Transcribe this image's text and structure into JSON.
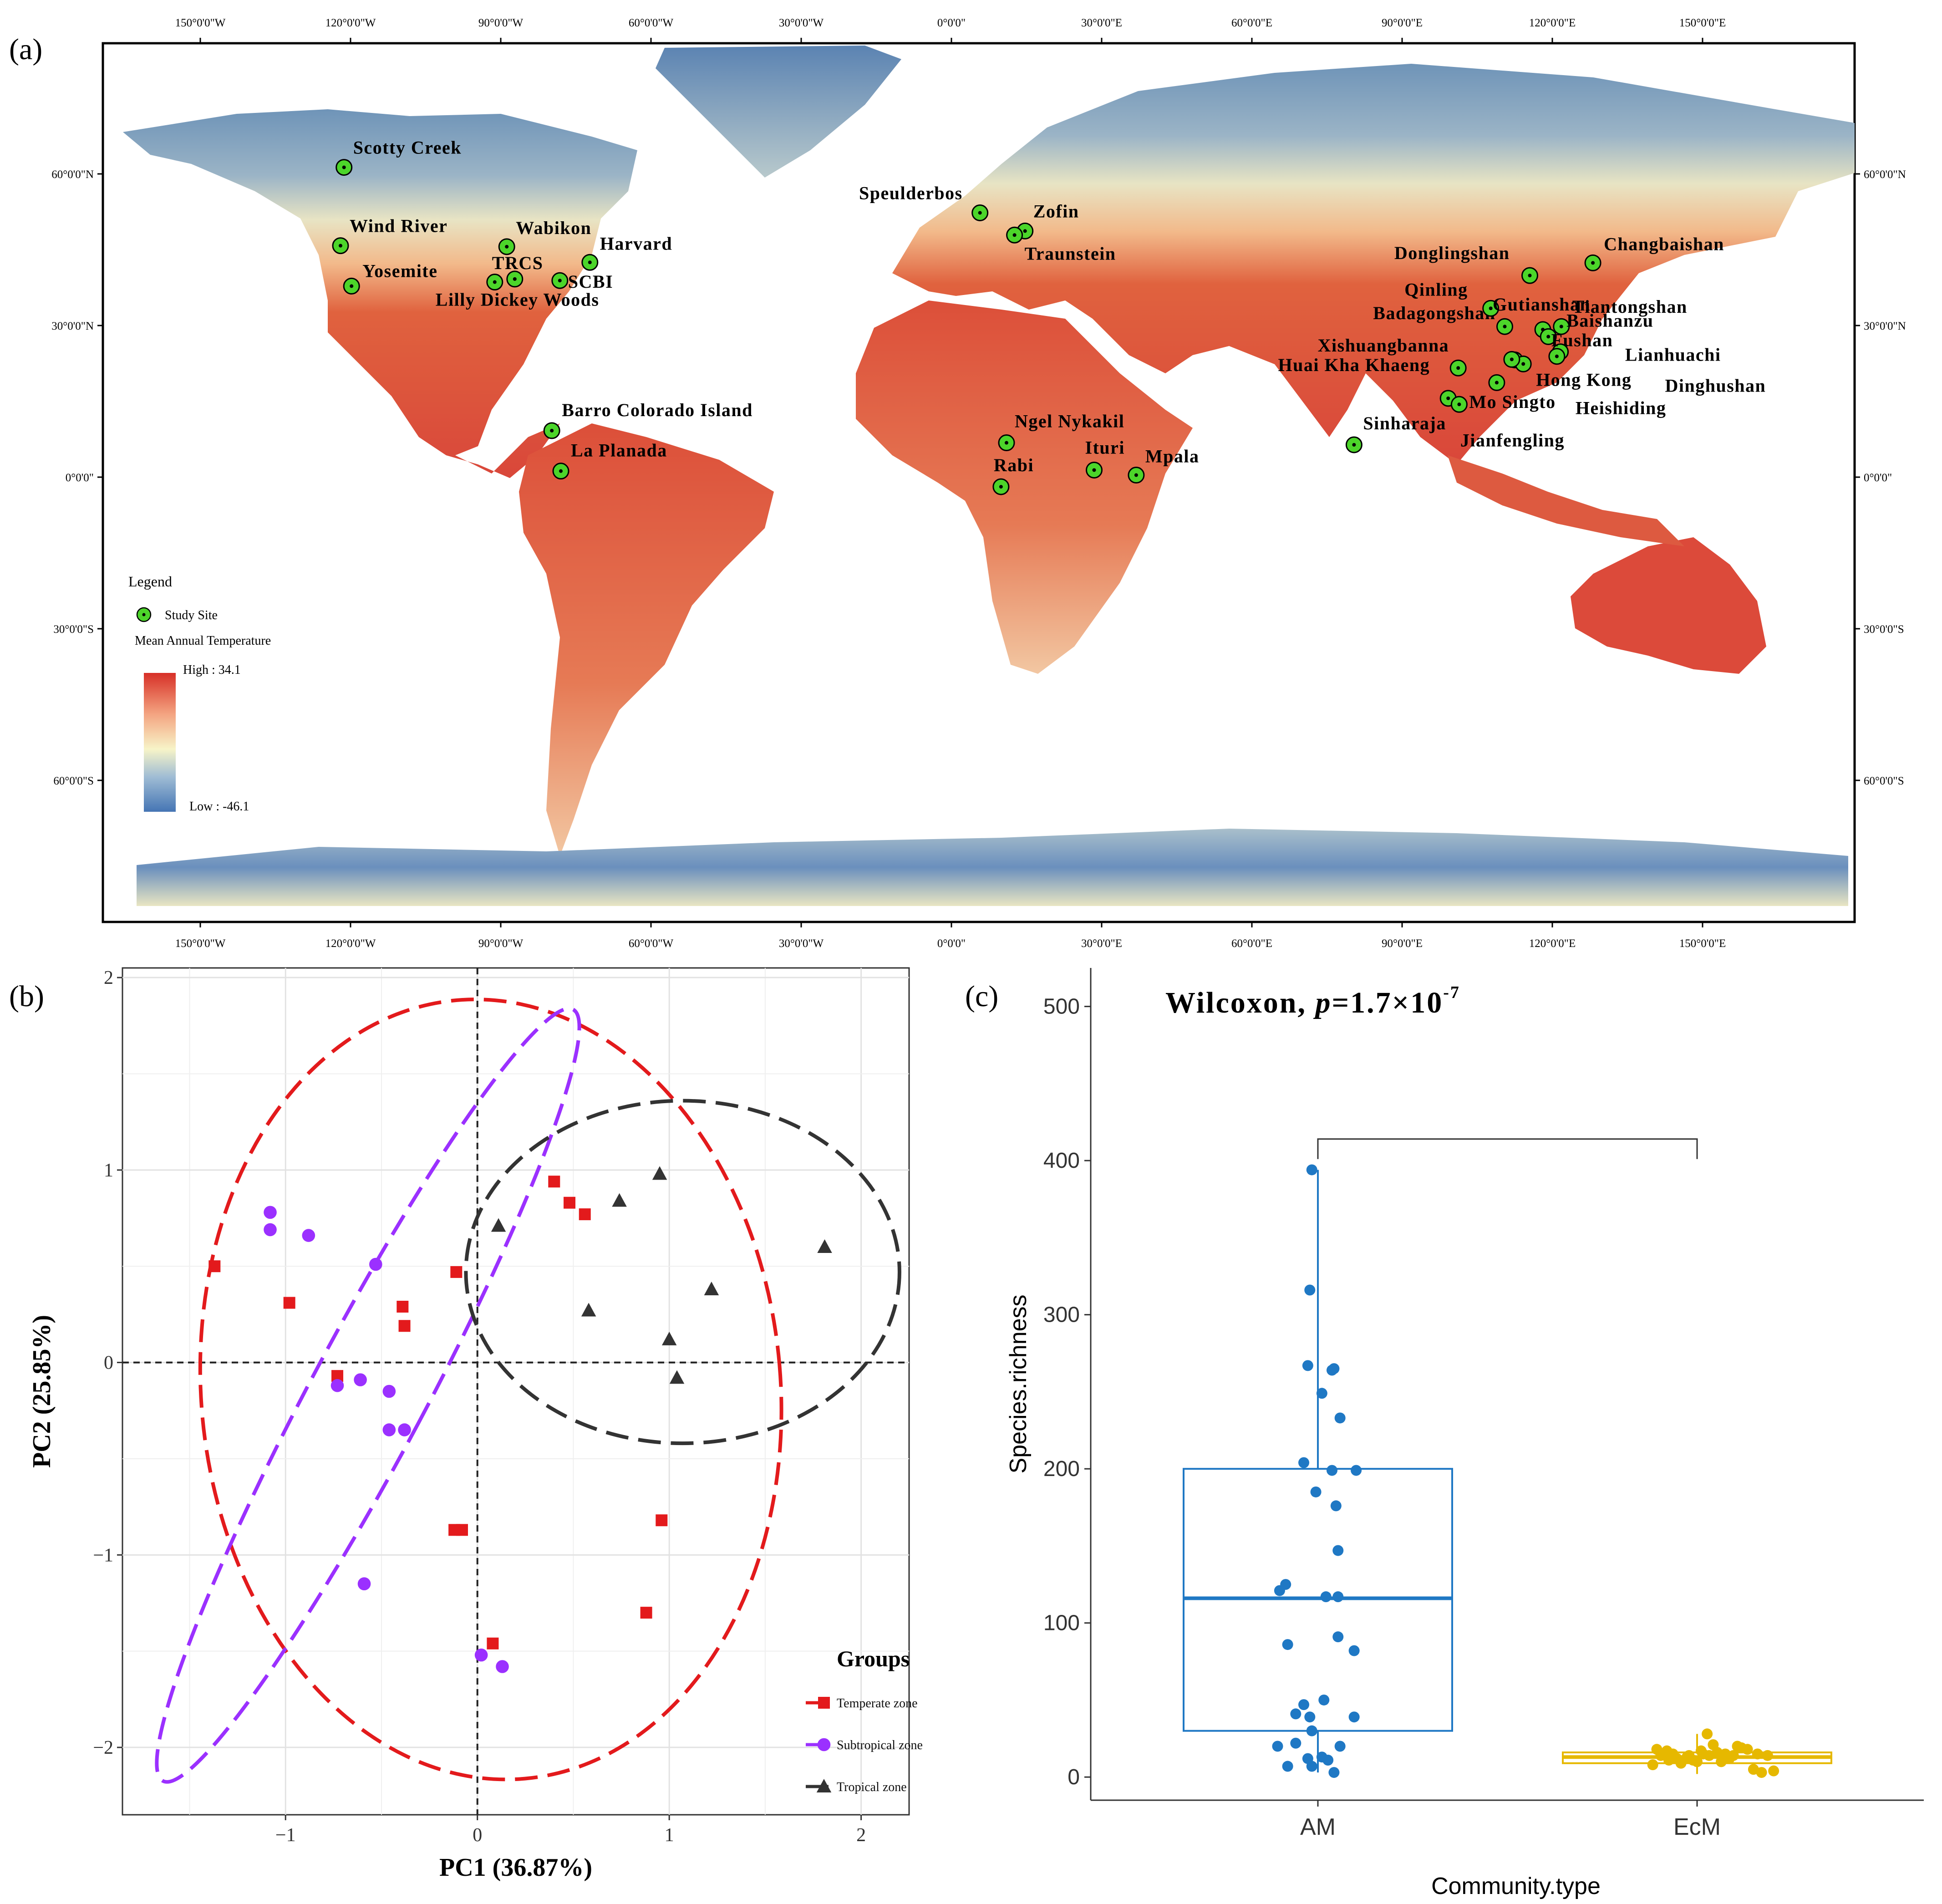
{
  "panel_labels": {
    "a": "(a)",
    "b": "(b)",
    "c": "(c)"
  },
  "map": {
    "lon_ticks": [
      {
        "lon": -150,
        "label": "150°0'0\"W"
      },
      {
        "lon": -120,
        "label": "120°0'0\"W"
      },
      {
        "lon": -90,
        "label": "90°0'0\"W"
      },
      {
        "lon": -60,
        "label": "60°0'0\"W"
      },
      {
        "lon": -30,
        "label": "30°0'0\"W"
      },
      {
        "lon": 0,
        "label": "0°0'0\""
      },
      {
        "lon": 30,
        "label": "30°0'0\"E"
      },
      {
        "lon": 60,
        "label": "60°0'0\"E"
      },
      {
        "lon": 90,
        "label": "90°0'0\"E"
      },
      {
        "lon": 120,
        "label": "120°0'0\"E"
      },
      {
        "lon": 150,
        "label": "150°0'0\"E"
      }
    ],
    "lat_ticks": [
      {
        "lat": 60,
        "label": "60°0'0\"N"
      },
      {
        "lat": 30,
        "label": "30°0'0\"N"
      },
      {
        "lat": 0,
        "label": "0°0'0\""
      },
      {
        "lat": -30,
        "label": "30°0'0\"S"
      },
      {
        "lat": -60,
        "label": "60°0'0\"S"
      }
    ],
    "legend": {
      "title": "Legend",
      "site_label": "Study Site",
      "temp_title": "Mean Annual Temperature",
      "high": "High : 34.1",
      "low": "Low : -46.1"
    },
    "colors": {
      "hot": "#d73027",
      "warm": "#f4a582",
      "mild": "#f7f4c8",
      "cold": "#4575b4",
      "site": "#4cd52a"
    },
    "sites": [
      {
        "name": "Scotty Creek",
        "lon": -121.3,
        "lat": 61.3
      },
      {
        "name": "Wind River",
        "lon": -122.0,
        "lat": 45.8
      },
      {
        "name": "Yosemite",
        "lon": -119.8,
        "lat": 37.8
      },
      {
        "name": "Wabikon",
        "lon": -88.8,
        "lat": 45.6
      },
      {
        "name": "TRCS",
        "lon": -87.2,
        "lat": 39.2
      },
      {
        "name": "Lilly Dickey Woods",
        "lon": -91.2,
        "lat": 38.6
      },
      {
        "name": "SCBI",
        "lon": -78.2,
        "lat": 38.9
      },
      {
        "name": "Harvard",
        "lon": -72.2,
        "lat": 42.5
      },
      {
        "name": "Barro Colorado Island",
        "lon": -79.8,
        "lat": 9.2
      },
      {
        "name": "La Planada",
        "lon": -78.0,
        "lat": 1.2
      },
      {
        "name": "Speulderbos",
        "lon": 5.7,
        "lat": 52.3
      },
      {
        "name": "Zofin",
        "lon": 14.7,
        "lat": 48.7
      },
      {
        "name": "Traunstein",
        "lon": 12.6,
        "lat": 47.9
      },
      {
        "name": "Ngel Nykakil",
        "lon": 11.0,
        "lat": 6.8
      },
      {
        "name": "Rabi",
        "lon": 9.9,
        "lat": -1.9
      },
      {
        "name": "Ituri",
        "lon": 28.5,
        "lat": 1.4
      },
      {
        "name": "Mpala",
        "lon": 36.9,
        "lat": 0.4
      },
      {
        "name": "Sinharaja",
        "lon": 80.4,
        "lat": 6.4
      },
      {
        "name": "Huai Kha Khaeng",
        "lon": 99.2,
        "lat": 15.6
      },
      {
        "name": "Mo Singto",
        "lon": 101.4,
        "lat": 14.4
      },
      {
        "name": "Xishuangbanna",
        "lon": 101.2,
        "lat": 21.6
      },
      {
        "name": "Badagongshan",
        "lon": 110.5,
        "lat": 29.8
      },
      {
        "name": "Qinling",
        "lon": 107.7,
        "lat": 33.4
      },
      {
        "name": "Donglingshan",
        "lon": 115.5,
        "lat": 39.9
      },
      {
        "name": "Changbaishan",
        "lon": 128.1,
        "lat": 42.4
      },
      {
        "name": "Gutianshan",
        "lon": 118.1,
        "lat": 29.2
      },
      {
        "name": "Tiantongshan",
        "lon": 121.8,
        "lat": 29.8
      },
      {
        "name": "Baishanzu",
        "lon": 119.2,
        "lat": 27.8
      },
      {
        "name": "Fushan",
        "lon": 121.6,
        "lat": 24.8
      },
      {
        "name": "Lianhuachi",
        "lon": 120.9,
        "lat": 23.9
      },
      {
        "name": "Dinghushan",
        "lon": 112.5,
        "lat": 23.2
      },
      {
        "name": "Hong Kong",
        "lon": 114.2,
        "lat": 22.4
      },
      {
        "name": "Heishiding",
        "lon": 111.9,
        "lat": 23.3
      },
      {
        "name": "Jianfengling",
        "lon": 108.9,
        "lat": 18.7
      }
    ]
  },
  "chart_data": [
    {
      "type": "scatter",
      "xlabel": "PC1 (36.87%)",
      "ylabel": "PC2 (25.85%)",
      "xlim": [
        -1.85,
        2.25
      ],
      "ylim": [
        -2.35,
        2.05
      ],
      "xticks": [
        -1,
        0,
        1,
        2
      ],
      "yticks": [
        -2,
        -1,
        0,
        1,
        2
      ],
      "tick_labels": {
        "x": [
          "−1",
          "0",
          "1",
          "2"
        ],
        "y": [
          "−2",
          "−1",
          "0",
          "1",
          "2"
        ]
      },
      "grid": true,
      "legend": {
        "title": "Groups",
        "position": "bottom-right"
      },
      "series": [
        {
          "name": "Temperate zone",
          "color": "#e31a1c",
          "marker": "square",
          "points": [
            [
              -1.37,
              0.5
            ],
            [
              -0.98,
              0.31
            ],
            [
              -0.39,
              0.29
            ],
            [
              -0.38,
              0.19
            ],
            [
              -0.73,
              -0.07
            ],
            [
              -0.11,
              0.47
            ],
            [
              -0.12,
              -0.87
            ],
            [
              -0.08,
              -0.87
            ],
            [
              0.08,
              -1.46
            ],
            [
              0.4,
              0.94
            ],
            [
              0.48,
              0.83
            ],
            [
              0.56,
              0.77
            ],
            [
              0.96,
              -0.82
            ],
            [
              0.88,
              -1.3
            ]
          ],
          "ellipse": {
            "cx": 0.07,
            "cy": -0.14,
            "rx": 1.51,
            "ry": 2.03,
            "angle_deg": -5
          }
        },
        {
          "name": "Subtropical zone",
          "color": "#9b30ff",
          "marker": "circle",
          "points": [
            [
              -1.08,
              0.78
            ],
            [
              -1.08,
              0.69
            ],
            [
              -0.88,
              0.66
            ],
            [
              -0.53,
              0.51
            ],
            [
              -0.61,
              -0.09
            ],
            [
              -0.73,
              -0.12
            ],
            [
              -0.46,
              -0.15
            ],
            [
              -0.46,
              -0.35
            ],
            [
              -0.38,
              -0.35
            ],
            [
              -0.59,
              -1.15
            ],
            [
              0.02,
              -1.52
            ],
            [
              0.13,
              -1.58
            ]
          ],
          "ellipse": {
            "cx": -0.57,
            "cy": -0.17,
            "rx": 0.3,
            "ry": 2.27,
            "angle_deg": 28
          }
        },
        {
          "name": "Tropical zone",
          "color": "#333333",
          "marker": "triangle",
          "points": [
            [
              0.11,
              0.71
            ],
            [
              0.74,
              0.84
            ],
            [
              0.95,
              0.98
            ],
            [
              0.58,
              0.27
            ],
            [
              1.22,
              0.38
            ],
            [
              1.0,
              0.12
            ],
            [
              1.04,
              -0.08
            ],
            [
              1.81,
              0.6
            ]
          ],
          "ellipse": {
            "cx": 1.07,
            "cy": 0.47,
            "rx": 1.13,
            "ry": 0.89,
            "angle_deg": 0
          }
        }
      ]
    },
    {
      "type": "box",
      "title_prefix": "Wilcoxon, ",
      "title_p": "p",
      "title_value": "=1.7×10",
      "title_exp": "-7",
      "xlabel": "Community.type",
      "ylabel": "Species.richness",
      "categories": [
        "AM",
        "EcM"
      ],
      "ylim": [
        -15,
        525
      ],
      "yticks": [
        0,
        100,
        200,
        300,
        400,
        500
      ],
      "grid": false,
      "boxes": [
        {
          "category": "AM",
          "color": "#1f78c4",
          "q1": 30,
          "median": 116,
          "q3": 200,
          "whisker_low": 3,
          "whisker_high": 394,
          "points": [
            [
              -0.03,
              394
            ],
            [
              -0.04,
              316
            ],
            [
              -0.05,
              267
            ],
            [
              0.08,
              265
            ],
            [
              0.07,
              264
            ],
            [
              0.02,
              249
            ],
            [
              0.11,
              233
            ],
            [
              -0.07,
              204
            ],
            [
              0.07,
              199
            ],
            [
              0.19,
              199
            ],
            [
              -0.01,
              185
            ],
            [
              0.09,
              176
            ],
            [
              0.1,
              147
            ],
            [
              -0.19,
              121
            ],
            [
              -0.16,
              125
            ],
            [
              0.04,
              117
            ],
            [
              0.1,
              117
            ],
            [
              0.18,
              82
            ],
            [
              -0.15,
              86
            ],
            [
              0.1,
              91
            ],
            [
              -0.07,
              47
            ],
            [
              0.03,
              50
            ],
            [
              -0.11,
              41
            ],
            [
              -0.04,
              39
            ],
            [
              -0.03,
              30
            ],
            [
              0.18,
              39
            ],
            [
              -0.2,
              20
            ],
            [
              -0.11,
              22
            ],
            [
              -0.05,
              12
            ],
            [
              0.02,
              13
            ],
            [
              0.11,
              20
            ],
            [
              -0.15,
              7
            ],
            [
              -0.03,
              7
            ],
            [
              0.05,
              11
            ],
            [
              0.08,
              3
            ]
          ]
        },
        {
          "category": "EcM",
          "color": "#e6b800",
          "q1": 9,
          "median": 13,
          "q3": 16,
          "whisker_low": 2,
          "whisker_high": 28,
          "points": [
            [
              -0.2,
              18
            ],
            [
              -0.15,
              17
            ],
            [
              -0.12,
              15
            ],
            [
              -0.18,
              14
            ],
            [
              -0.1,
              12
            ],
            [
              -0.05,
              13
            ],
            [
              -0.02,
              11
            ],
            [
              0.03,
              15
            ],
            [
              0.06,
              14
            ],
            [
              0.1,
              16
            ],
            [
              0.14,
              15
            ],
            [
              0.18,
              14
            ],
            [
              0.2,
              20
            ],
            [
              0.22,
              19
            ],
            [
              0.25,
              18
            ],
            [
              0.3,
              15
            ],
            [
              0.35,
              14
            ],
            [
              -0.08,
              9
            ],
            [
              0.0,
              10
            ],
            [
              0.05,
              28
            ],
            [
              0.12,
              10
            ],
            [
              0.16,
              12
            ],
            [
              0.08,
              21
            ],
            [
              -0.22,
              8
            ],
            [
              0.28,
              5
            ],
            [
              0.32,
              3
            ],
            [
              0.38,
              4
            ],
            [
              -0.14,
              11
            ],
            [
              0.02,
              17
            ],
            [
              -0.04,
              14
            ]
          ]
        }
      ]
    }
  ]
}
